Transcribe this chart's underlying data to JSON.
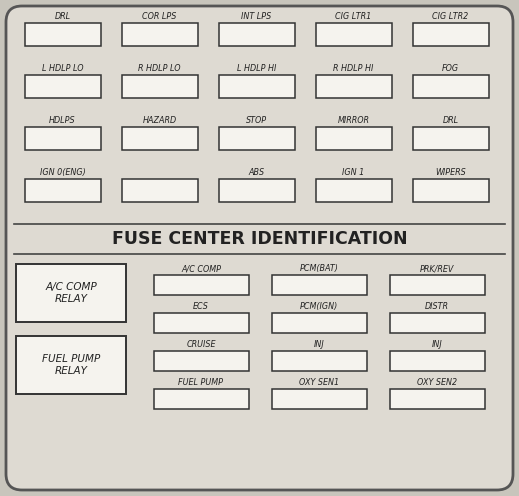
{
  "title": "FUSE CENTER IDENTIFICATION",
  "bg_color": "#c8c5bc",
  "inner_bg": "#dedad2",
  "box_color": "#f5f3ee",
  "box_edge_color": "#333333",
  "text_color": "#222222",
  "outer_border_color": "#555555",
  "divider_color": "#444444",
  "figsize": [
    5.19,
    4.96
  ],
  "dpi": 100,
  "top_rows": [
    [
      "DRL",
      "COR LPS",
      "INT LPS",
      "CIG LTR1",
      "CIG LTR2"
    ],
    [
      "L HDLP LO",
      "R HDLP LO",
      "L HDLP HI",
      "R HDLP HI",
      "FOG"
    ],
    [
      "HDLPS",
      "HAZARD",
      "STOP",
      "MIRROR",
      "DRL"
    ],
    [
      "IGN 0(ENG)",
      "",
      "ABS",
      "IGN 1",
      "WIPERS"
    ]
  ],
  "top_row4_boxes": [
    0,
    1,
    2,
    3,
    4
  ],
  "relay_labels": [
    "A/C COMP\nRELAY",
    "FUEL PUMP\nRELAY"
  ],
  "bottom_rows": [
    [
      "A/C COMP",
      "PCM(BAT)",
      "PRK/REV"
    ],
    [
      "ECS",
      "PCM(IGN)",
      "DISTR"
    ],
    [
      "CRUISE",
      "INJ",
      "INJ"
    ],
    [
      "FUEL PUMP",
      "OXY SEN1",
      "OXY SEN2"
    ]
  ]
}
